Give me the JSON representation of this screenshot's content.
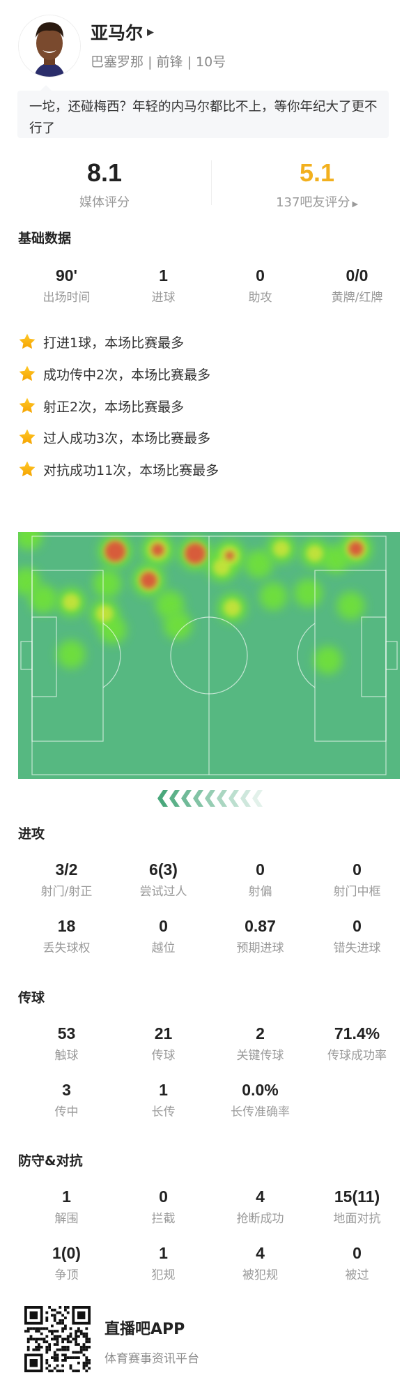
{
  "player": {
    "name": "亚马尔",
    "team": "巴塞罗那",
    "position": "前锋",
    "number": "10号",
    "separator": "|",
    "arrow_icon": "triangle-right-icon"
  },
  "comment": "一坨，还碰梅西？年轻的内马尔都比不上，等你年纪大了更不行了",
  "ratings": {
    "media": {
      "value": "8.1",
      "label": "媒体评分"
    },
    "fans": {
      "value": "5.1",
      "label": "137吧友评分",
      "color": "#f2b01e"
    }
  },
  "basic": {
    "title": "基础数据",
    "items": [
      {
        "value": "90'",
        "label": "出场时间"
      },
      {
        "value": "1",
        "label": "进球"
      },
      {
        "value": "0",
        "label": "助攻"
      },
      {
        "value": "0/0",
        "label": "黄牌/红牌"
      }
    ]
  },
  "highlights": [
    "打进1球，本场比赛最多",
    "成功传中2次，本场比赛最多",
    "射正2次，本场比赛最多",
    "过人成功3次，本场比赛最多",
    "对抗成功11次，本场比赛最多"
  ],
  "heatmap": {
    "pitch_color": "#56b881",
    "attack_direction": "left",
    "points_m": [
      [
        2.9,
        1.1,
        0.3
      ],
      [
        26.7,
        5.3,
        1.0
      ],
      [
        38.4,
        4.9,
        0.8
      ],
      [
        48.7,
        5.9,
        1.0
      ],
      [
        58.2,
        6.5,
        0.7
      ],
      [
        56,
        9.7,
        0.5
      ],
      [
        66.2,
        8.8,
        0.4
      ],
      [
        72.4,
        4.6,
        0.45
      ],
      [
        81.6,
        5.9,
        0.45
      ],
      [
        87.4,
        7.5,
        0.35
      ],
      [
        92.9,
        4.6,
        0.85
      ],
      [
        35.9,
        13.3,
        0.9
      ],
      [
        24.5,
        14.2,
        0.4
      ],
      [
        2.2,
        13.6,
        0.35
      ],
      [
        6.9,
        18.4,
        0.4
      ],
      [
        14.6,
        19.3,
        0.5
      ],
      [
        23.8,
        22.5,
        0.5
      ],
      [
        26,
        27,
        0.35
      ],
      [
        41.7,
        20,
        0.4
      ],
      [
        43.9,
        25.7,
        0.4
      ],
      [
        58.9,
        20.9,
        0.5
      ],
      [
        70.2,
        17.7,
        0.35
      ],
      [
        79.8,
        16.8,
        0.4
      ],
      [
        91.5,
        20.3,
        0.35
      ],
      [
        14.6,
        33.7,
        0.4
      ],
      [
        85.2,
        35.3,
        0.4
      ]
    ]
  },
  "sections": [
    {
      "title": "进攻",
      "rows": [
        [
          {
            "value": "3/2",
            "label": "射门/射正"
          },
          {
            "value": "6(3)",
            "label": "尝试过人"
          },
          {
            "value": "0",
            "label": "射偏"
          },
          {
            "value": "0",
            "label": "射门中框"
          }
        ],
        [
          {
            "value": "18",
            "label": "丢失球权"
          },
          {
            "value": "0",
            "label": "越位"
          },
          {
            "value": "0.87",
            "label": "预期进球"
          },
          {
            "value": "0",
            "label": "错失进球"
          }
        ]
      ]
    },
    {
      "title": "传球",
      "rows": [
        [
          {
            "value": "53",
            "label": "触球"
          },
          {
            "value": "21",
            "label": "传球"
          },
          {
            "value": "2",
            "label": "关键传球"
          },
          {
            "value": "71.4%",
            "label": "传球成功率"
          }
        ],
        [
          {
            "value": "3",
            "label": "传中"
          },
          {
            "value": "1",
            "label": "长传"
          },
          {
            "value": "0.0%",
            "label": "长传准确率"
          }
        ]
      ]
    },
    {
      "title": "防守&对抗",
      "rows": [
        [
          {
            "value": "1",
            "label": "解围"
          },
          {
            "value": "0",
            "label": "拦截"
          },
          {
            "value": "4",
            "label": "抢断成功"
          },
          {
            "value": "15(11)",
            "label": "地面对抗"
          }
        ],
        [
          {
            "value": "1(0)",
            "label": "争顶"
          },
          {
            "value": "1",
            "label": "犯规"
          },
          {
            "value": "4",
            "label": "被犯规"
          },
          {
            "value": "0",
            "label": "被过"
          }
        ]
      ]
    }
  ],
  "footer": {
    "app_name": "直播吧APP",
    "tagline": "体育赛事资讯平台"
  }
}
